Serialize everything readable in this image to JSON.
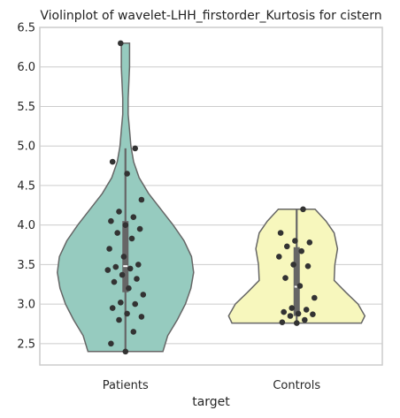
{
  "chart_data": {
    "type": "violin",
    "title": "Violinplot of wavelet-LHH_firstorder_Kurtosis for cistern",
    "xlabel": "target",
    "ylabel": "",
    "ylim": [
      2.23,
      6.5
    ],
    "yticks": [
      "2.5",
      "3.0",
      "3.5",
      "4.0",
      "4.5",
      "5.0",
      "5.5",
      "6.0",
      "6.5"
    ],
    "grid": true,
    "categories": [
      "Patients",
      "Controls"
    ],
    "colors": {
      "Patients": "#96cbbf",
      "Controls": "#f7f7bd",
      "points": "#333333",
      "box": "#666666",
      "outline": "#666666"
    },
    "series": [
      {
        "category": "Patients",
        "min": 2.4,
        "max": 6.3,
        "q1": 3.15,
        "median": 3.48,
        "q3": 4.05,
        "whisker_low": 2.4,
        "whisker_high": 4.97,
        "points": [
          2.4,
          2.5,
          2.65,
          2.8,
          2.84,
          2.88,
          2.95,
          3.0,
          3.02,
          3.12,
          3.2,
          3.28,
          3.32,
          3.37,
          3.43,
          3.45,
          3.47,
          3.5,
          3.6,
          3.7,
          3.83,
          3.9,
          3.95,
          4.0,
          4.05,
          4.1,
          4.17,
          4.32,
          4.65,
          4.8,
          4.97,
          6.3
        ],
        "density": [
          [
            2.4,
            0.55
          ],
          [
            2.6,
            0.62
          ],
          [
            2.8,
            0.76
          ],
          [
            3.0,
            0.88
          ],
          [
            3.2,
            0.96
          ],
          [
            3.4,
            1.0
          ],
          [
            3.6,
            0.97
          ],
          [
            3.8,
            0.86
          ],
          [
            4.0,
            0.7
          ],
          [
            4.2,
            0.52
          ],
          [
            4.4,
            0.34
          ],
          [
            4.6,
            0.2
          ],
          [
            4.8,
            0.12
          ],
          [
            5.0,
            0.08
          ],
          [
            5.2,
            0.06
          ],
          [
            5.4,
            0.04
          ],
          [
            5.6,
            0.04
          ],
          [
            5.8,
            0.05
          ],
          [
            6.0,
            0.06
          ],
          [
            6.15,
            0.06
          ],
          [
            6.3,
            0.06
          ]
        ]
      },
      {
        "category": "Controls",
        "min": 2.76,
        "max": 4.2,
        "q1": 2.85,
        "median": 3.22,
        "q3": 3.72,
        "whisker_low": 2.76,
        "whisker_high": 4.2,
        "points": [
          2.76,
          2.77,
          2.8,
          2.85,
          2.87,
          2.88,
          2.9,
          2.93,
          2.95,
          3.08,
          3.23,
          3.33,
          3.48,
          3.5,
          3.6,
          3.67,
          3.73,
          3.78,
          3.8,
          3.9,
          4.2
        ],
        "density": [
          [
            2.76,
            0.95
          ],
          [
            2.85,
            1.0
          ],
          [
            3.0,
            0.9
          ],
          [
            3.15,
            0.72
          ],
          [
            3.3,
            0.55
          ],
          [
            3.5,
            0.56
          ],
          [
            3.7,
            0.6
          ],
          [
            3.9,
            0.55
          ],
          [
            4.05,
            0.43
          ],
          [
            4.2,
            0.27
          ]
        ]
      }
    ]
  }
}
